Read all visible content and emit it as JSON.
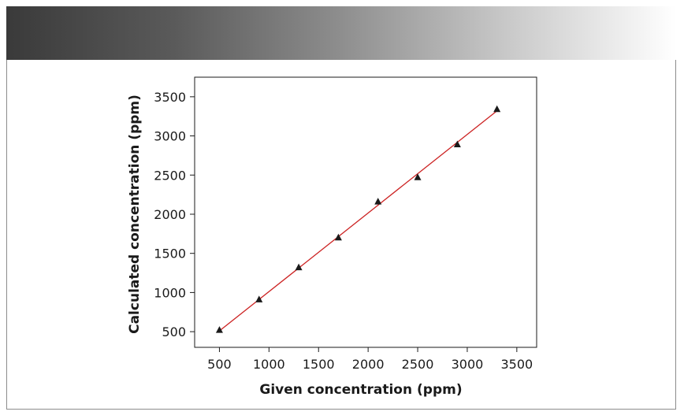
{
  "chart_data": {
    "type": "scatter",
    "title": "",
    "xlabel": "Given concentration (ppm)",
    "ylabel": "Calculated concentration (ppm)",
    "xlim": [
      250,
      3700
    ],
    "ylim": [
      300,
      3750
    ],
    "x_ticks": [
      500,
      1000,
      1500,
      2000,
      2500,
      3000,
      3500
    ],
    "y_ticks": [
      500,
      1000,
      1500,
      2000,
      2500,
      3000,
      3500
    ],
    "x_tick_labels": [
      "500",
      "1000",
      "1500",
      "2000",
      "2500",
      "3000",
      "3500"
    ],
    "y_tick_labels": [
      "500",
      "1000",
      "1500",
      "2000",
      "2500",
      "3000",
      "3500"
    ],
    "grid": false,
    "series": [
      {
        "marker": "triangle",
        "color": "#1a1a1a",
        "x": [
          500,
          900,
          1300,
          1700,
          2100,
          2500,
          2900,
          3300
        ],
        "y": [
          520,
          910,
          1320,
          1700,
          2160,
          2470,
          2890,
          3340
        ]
      }
    ],
    "fit_line": {
      "color": "#cc2222",
      "x": [
        500,
        3300
      ],
      "y": [
        510,
        3320
      ]
    }
  }
}
